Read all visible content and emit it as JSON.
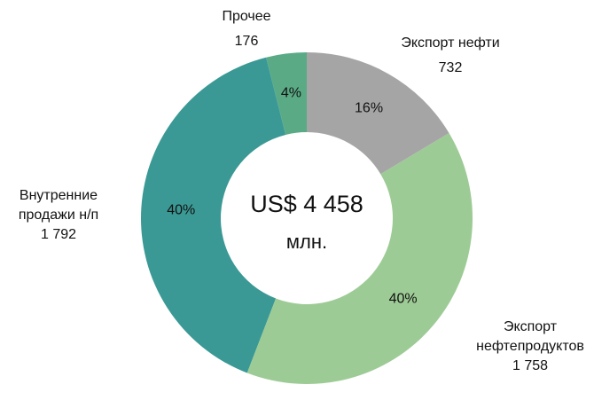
{
  "chart_data": {
    "type": "donut",
    "categories": [
      "Экспорт нефти",
      "Экспорт нефтепродуктов",
      "Внутренние продажи н/п",
      "Прочее"
    ],
    "values": [
      732,
      1758,
      1792,
      176
    ],
    "value_labels": [
      "732",
      "1 758",
      "1 792",
      "176"
    ],
    "percent_values": [
      16,
      40,
      40,
      4
    ],
    "percent_labels": [
      "16%",
      "40%",
      "40%",
      "4%"
    ],
    "colors": [
      "#a5a5a5",
      "#9dcb95",
      "#3a9995",
      "#5aab85"
    ],
    "center_label": "US$ 4 458",
    "center_unit": "млн."
  }
}
